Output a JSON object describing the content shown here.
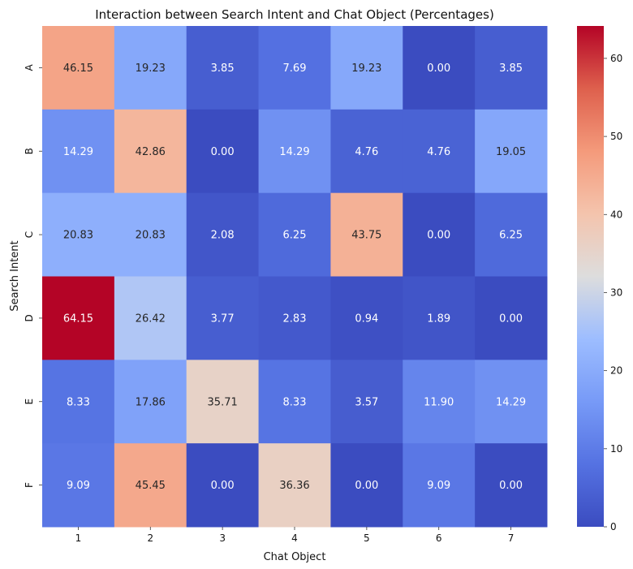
{
  "chart_data": {
    "type": "heatmap",
    "title": "Interaction between Search Intent and Chat Object (Percentages)",
    "xlabel": "Chat Object",
    "ylabel": "Search Intent",
    "x_categories": [
      "1",
      "2",
      "3",
      "4",
      "5",
      "6",
      "7"
    ],
    "y_categories": [
      "A",
      "B",
      "C",
      "D",
      "E",
      "F"
    ],
    "values": [
      [
        46.15,
        19.23,
        3.85,
        7.69,
        19.23,
        0.0,
        3.85
      ],
      [
        14.29,
        42.86,
        0.0,
        14.29,
        4.76,
        4.76,
        19.05
      ],
      [
        20.83,
        20.83,
        2.08,
        6.25,
        43.75,
        0.0,
        6.25
      ],
      [
        64.15,
        26.42,
        3.77,
        2.83,
        0.94,
        1.89,
        0.0
      ],
      [
        8.33,
        17.86,
        35.71,
        8.33,
        3.57,
        11.9,
        14.29
      ],
      [
        9.09,
        45.45,
        0.0,
        36.36,
        0.0,
        9.09,
        0.0
      ]
    ],
    "value_format": "2 decimals",
    "colormap": "coolwarm",
    "colorbar": {
      "range": [
        0,
        64.15
      ],
      "ticks": [
        0,
        10,
        20,
        30,
        40,
        50,
        60
      ]
    },
    "grid": false,
    "legend": "colorbar-right"
  }
}
